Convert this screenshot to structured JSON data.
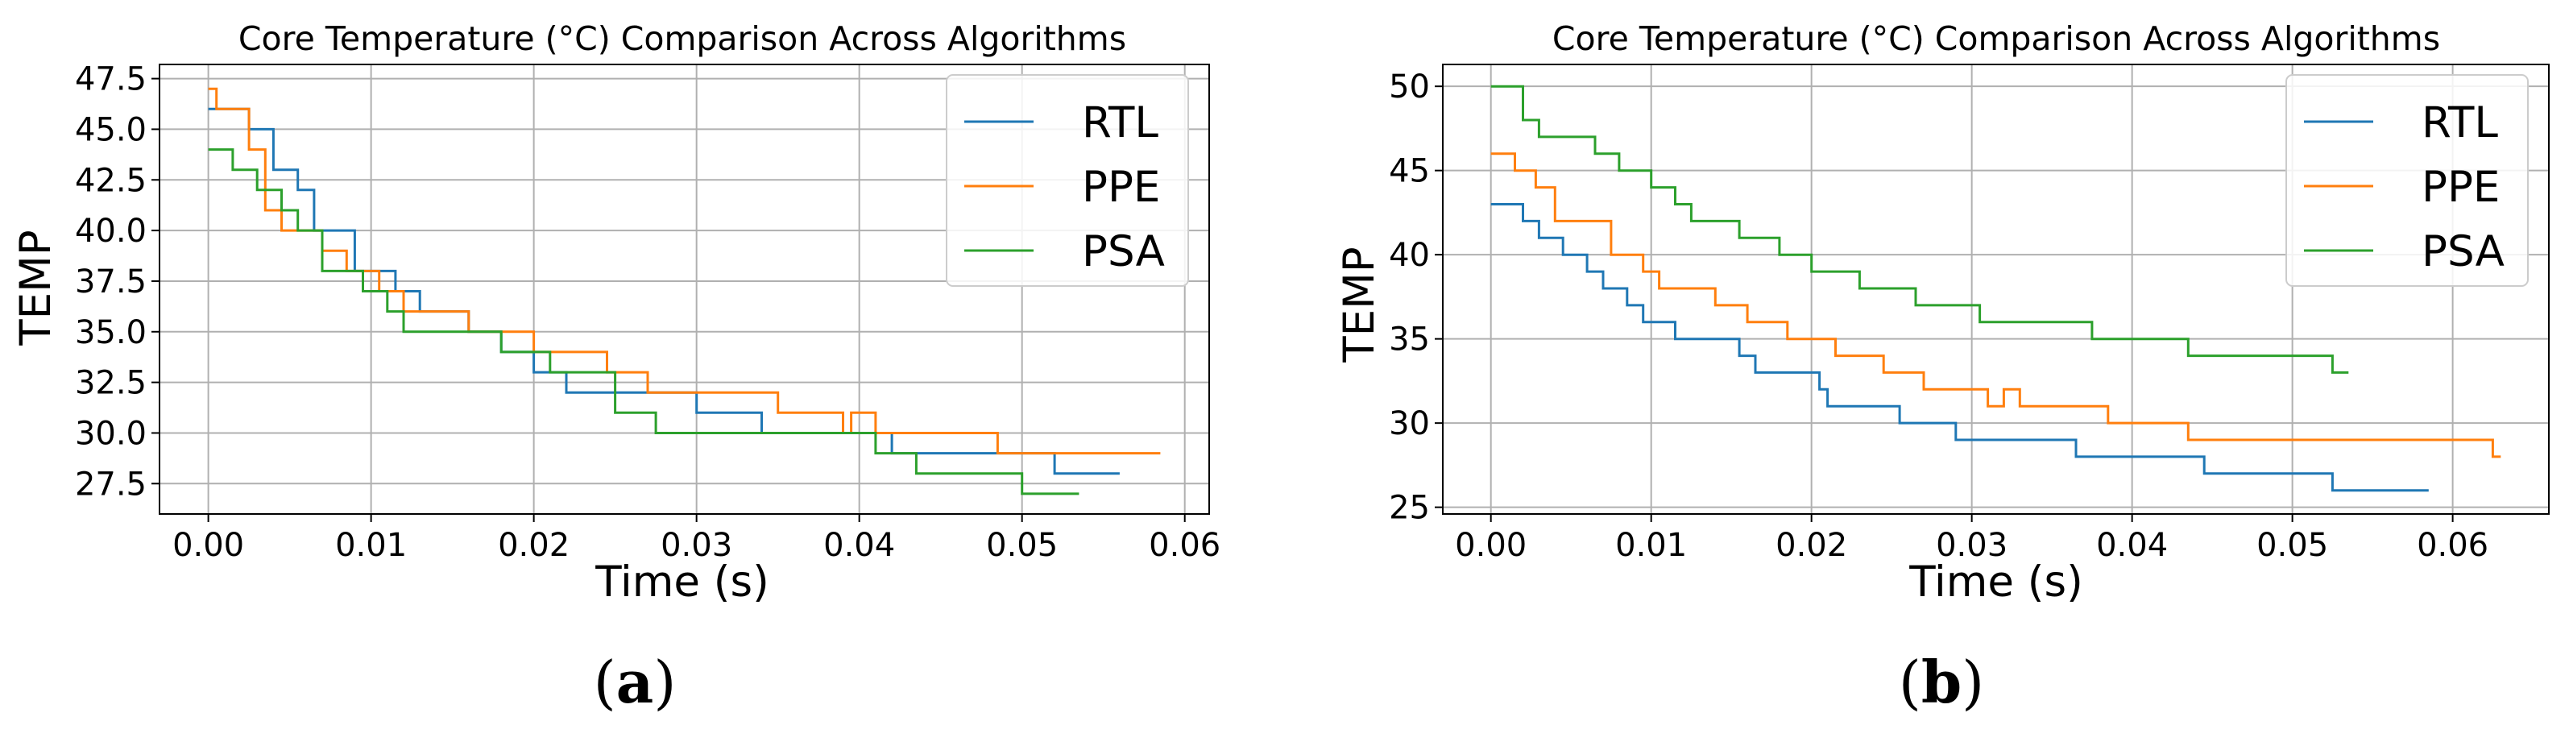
{
  "chart_data": [
    {
      "type": "line",
      "title": "Core Temperature (°C) Comparison Across Algorithms",
      "xlabel": "Time (s)",
      "ylabel": "TEMP",
      "panel_label": "a",
      "grid": true,
      "legend_position": "top-right",
      "xlim": [
        -0.003,
        0.0615
      ],
      "ylim": [
        26.0,
        48.2
      ],
      "xticks": [
        0.0,
        0.01,
        0.02,
        0.03,
        0.04,
        0.05,
        0.06
      ],
      "xtick_labels": [
        "0.00",
        "0.01",
        "0.02",
        "0.03",
        "0.04",
        "0.05",
        "0.06"
      ],
      "yticks": [
        27.5,
        30.0,
        32.5,
        35.0,
        37.5,
        40.0,
        42.5,
        45.0,
        47.5
      ],
      "ytick_labels": [
        "27.5",
        "30.0",
        "32.5",
        "35.0",
        "37.5",
        "40.0",
        "42.5",
        "45.0",
        "47.5"
      ],
      "series": [
        {
          "name": "RTL",
          "color": "#1f77b4",
          "x": [
            0.0,
            0.0015,
            0.0025,
            0.004,
            0.0055,
            0.0065,
            0.0075,
            0.009,
            0.0105,
            0.0115,
            0.013,
            0.014,
            0.016,
            0.018,
            0.02,
            0.022,
            0.025,
            0.0275,
            0.03,
            0.034,
            0.038,
            0.042,
            0.048,
            0.052,
            0.056
          ],
          "y": [
            46,
            46,
            45,
            43,
            42,
            40,
            40,
            38,
            38,
            37,
            36,
            36,
            35,
            34,
            33,
            32,
            32,
            32,
            31,
            30,
            30,
            29,
            29,
            28,
            28
          ]
        },
        {
          "name": "PPE",
          "color": "#ff7f0e",
          "x": [
            0.0,
            0.0005,
            0.0015,
            0.0025,
            0.0035,
            0.0045,
            0.0055,
            0.007,
            0.0085,
            0.0105,
            0.012,
            0.014,
            0.016,
            0.019,
            0.02,
            0.022,
            0.0245,
            0.027,
            0.03,
            0.035,
            0.039,
            0.0395,
            0.041,
            0.042,
            0.0485,
            0.0585
          ],
          "y": [
            47,
            46,
            46,
            44,
            41,
            40,
            40,
            39,
            38,
            37,
            36,
            36,
            35,
            35,
            34,
            34,
            33,
            32,
            32,
            31,
            30,
            31,
            30,
            30,
            29,
            29
          ]
        },
        {
          "name": "PSA",
          "color": "#2ca02c",
          "x": [
            0.0,
            0.0015,
            0.003,
            0.0045,
            0.0055,
            0.007,
            0.0095,
            0.011,
            0.012,
            0.0155,
            0.018,
            0.021,
            0.025,
            0.0275,
            0.034,
            0.041,
            0.0435,
            0.0485,
            0.05,
            0.0535
          ],
          "y": [
            44,
            43,
            42,
            41,
            40,
            38,
            37,
            36,
            35,
            35,
            34,
            33,
            31,
            30,
            30,
            29,
            28,
            28,
            27,
            27
          ]
        }
      ]
    },
    {
      "type": "line",
      "title": "Core Temperature (°C) Comparison Across Algorithms",
      "xlabel": "Time (s)",
      "ylabel": "TEMP",
      "panel_label": "b",
      "grid": true,
      "legend_position": "top-right",
      "xlim": [
        -0.003,
        0.066
      ],
      "ylim": [
        24.6,
        51.3
      ],
      "xticks": [
        0.0,
        0.01,
        0.02,
        0.03,
        0.04,
        0.05,
        0.06
      ],
      "xtick_labels": [
        "0.00",
        "0.01",
        "0.02",
        "0.03",
        "0.04",
        "0.05",
        "0.06"
      ],
      "yticks": [
        25,
        30,
        35,
        40,
        45,
        50
      ],
      "ytick_labels": [
        "25",
        "30",
        "35",
        "40",
        "45",
        "50"
      ],
      "series": [
        {
          "name": "RTL",
          "color": "#1f77b4",
          "x": [
            0.0,
            0.002,
            0.003,
            0.0045,
            0.006,
            0.007,
            0.0085,
            0.0095,
            0.0105,
            0.0115,
            0.013,
            0.0155,
            0.0165,
            0.0205,
            0.021,
            0.0255,
            0.029,
            0.0365,
            0.0445,
            0.0525,
            0.0585
          ],
          "y": [
            43,
            42,
            41,
            40,
            39,
            38,
            37,
            36,
            36,
            35,
            35,
            34,
            33,
            32,
            31,
            30,
            29,
            28,
            27,
            26,
            26
          ]
        },
        {
          "name": "PPE",
          "color": "#ff7f0e",
          "x": [
            0.0,
            0.0015,
            0.0028,
            0.004,
            0.0075,
            0.0095,
            0.0105,
            0.0125,
            0.014,
            0.016,
            0.0185,
            0.0215,
            0.0245,
            0.027,
            0.031,
            0.032,
            0.033,
            0.034,
            0.0385,
            0.0435,
            0.0625,
            0.063
          ],
          "y": [
            46,
            45,
            44,
            42,
            40,
            39,
            38,
            38,
            37,
            36,
            35,
            34,
            33,
            32,
            31,
            32,
            31,
            31,
            30,
            29,
            28,
            28
          ]
        },
        {
          "name": "PSA",
          "color": "#2ca02c",
          "x": [
            0.0,
            0.002,
            0.003,
            0.004,
            0.0065,
            0.008,
            0.01,
            0.0115,
            0.0125,
            0.0155,
            0.018,
            0.02,
            0.023,
            0.0265,
            0.0305,
            0.0375,
            0.0435,
            0.0525,
            0.0535
          ],
          "y": [
            50,
            48,
            47,
            47,
            46,
            45,
            44,
            43,
            42,
            41,
            40,
            39,
            38,
            37,
            36,
            35,
            34,
            33,
            33
          ]
        }
      ]
    }
  ]
}
